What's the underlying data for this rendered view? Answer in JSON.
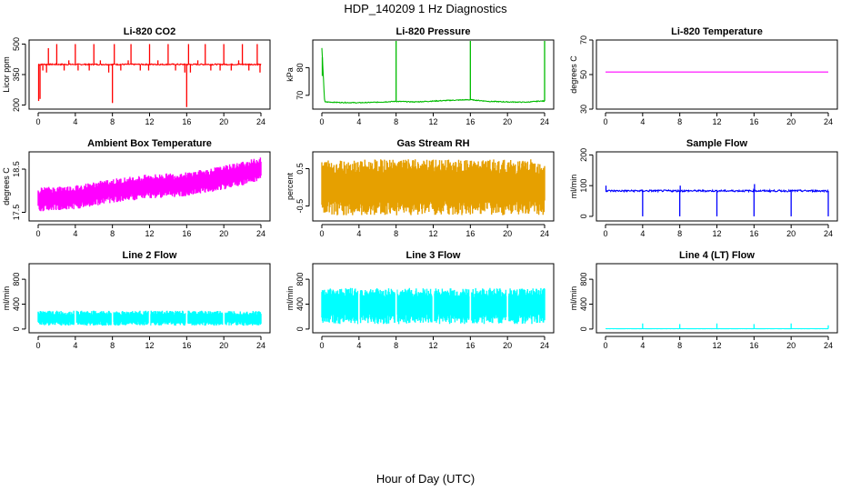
{
  "figure": {
    "title": "HDP_140209  1 Hz Diagnostics",
    "xlabel": "Hour of Day (UTC)"
  },
  "chart_data": [
    {
      "type": "line",
      "title": "Li-820 CO2",
      "ylabel": "Licor ppm",
      "color": "#ff0000",
      "xlim": [
        0,
        24
      ],
      "xticks": [
        0,
        4,
        8,
        12,
        16,
        20,
        24
      ],
      "ylim": [
        180,
        520
      ],
      "yticks": [
        200,
        350,
        500
      ],
      "baseline": 400,
      "noise": 6,
      "render": "line",
      "spikes": [
        {
          "x": 0.05,
          "y": 220
        },
        {
          "x": 0.2,
          "y": 230
        },
        {
          "x": 0.5,
          "y": 370
        },
        {
          "x": 0.9,
          "y": 360
        },
        {
          "x": 1.1,
          "y": 480
        },
        {
          "x": 2.0,
          "y": 500
        },
        {
          "x": 2.8,
          "y": 370
        },
        {
          "x": 3.3,
          "y": 420
        },
        {
          "x": 4.0,
          "y": 500
        },
        {
          "x": 4.3,
          "y": 370
        },
        {
          "x": 5.5,
          "y": 370
        },
        {
          "x": 6.0,
          "y": 500
        },
        {
          "x": 6.7,
          "y": 420
        },
        {
          "x": 7.6,
          "y": 360
        },
        {
          "x": 8.0,
          "y": 210
        },
        {
          "x": 8.2,
          "y": 500
        },
        {
          "x": 8.9,
          "y": 370
        },
        {
          "x": 9.7,
          "y": 420
        },
        {
          "x": 10.0,
          "y": 500
        },
        {
          "x": 11.0,
          "y": 370
        },
        {
          "x": 11.9,
          "y": 370
        },
        {
          "x": 12.0,
          "y": 500
        },
        {
          "x": 12.9,
          "y": 420
        },
        {
          "x": 14.0,
          "y": 500
        },
        {
          "x": 14.8,
          "y": 370
        },
        {
          "x": 15.8,
          "y": 360
        },
        {
          "x": 16.0,
          "y": 190
        },
        {
          "x": 16.2,
          "y": 500
        },
        {
          "x": 16.4,
          "y": 360
        },
        {
          "x": 17.2,
          "y": 420
        },
        {
          "x": 18.0,
          "y": 500
        },
        {
          "x": 18.6,
          "y": 370
        },
        {
          "x": 19.6,
          "y": 370
        },
        {
          "x": 20.0,
          "y": 500
        },
        {
          "x": 20.8,
          "y": 370
        },
        {
          "x": 21.6,
          "y": 420
        },
        {
          "x": 22.0,
          "y": 500
        },
        {
          "x": 22.7,
          "y": 370
        },
        {
          "x": 23.6,
          "y": 500
        },
        {
          "x": 23.9,
          "y": 360
        }
      ]
    },
    {
      "type": "line",
      "title": "Li-820 Pressure",
      "ylabel": "kPa",
      "color": "#00bb00",
      "xlim": [
        0,
        24
      ],
      "xticks": [
        0,
        4,
        8,
        12,
        16,
        20,
        24
      ],
      "ylim": [
        65,
        90
      ],
      "yticks": [
        70,
        80
      ],
      "series": {
        "x": [
          0,
          0.3,
          2,
          4,
          6,
          8,
          10,
          12,
          14,
          16,
          18,
          20,
          22,
          23.5,
          24
        ],
        "y": [
          87.0,
          67.6,
          67.4,
          67.3,
          67.5,
          67.8,
          67.6,
          67.9,
          68.2,
          68.4,
          67.8,
          67.6,
          67.5,
          67.9,
          67.9
        ]
      },
      "noise": 0.3,
      "render": "line",
      "spikes": [
        {
          "x": 0.05,
          "y": 77
        },
        {
          "x": 8.0,
          "y": 90
        },
        {
          "x": 16.0,
          "y": 90
        },
        {
          "x": 24.0,
          "y": 90
        }
      ]
    },
    {
      "type": "line",
      "title": "Li-820 Temperature",
      "ylabel": "degrees C",
      "color": "#ff00ff",
      "xlim": [
        0,
        24
      ],
      "xticks": [
        0,
        4,
        8,
        12,
        16,
        20,
        24
      ],
      "ylim": [
        30,
        70
      ],
      "yticks": [
        30,
        50,
        70
      ],
      "series": {
        "x": [
          0,
          24
        ],
        "y": [
          51.5,
          51.5
        ]
      },
      "noise": 0,
      "render": "line"
    },
    {
      "type": "line",
      "title": "Ambient Box Temperature",
      "ylabel": "degrees C",
      "color": "#ff00ff",
      "xlim": [
        0,
        24
      ],
      "xticks": [
        0,
        4,
        8,
        12,
        16,
        20,
        24
      ],
      "ylim": [
        17.3,
        18.9
      ],
      "yticks": [
        17.5,
        18.5
      ],
      "series": {
        "x": [
          0,
          4,
          8,
          12,
          16,
          20,
          24
        ],
        "y": [
          17.8,
          17.85,
          18.0,
          18.1,
          18.15,
          18.3,
          18.5
        ]
      },
      "noise": 0.28,
      "render": "band"
    },
    {
      "type": "line",
      "title": "Gas Stream RH",
      "ylabel": "percent",
      "color": "#e6a000",
      "xlim": [
        0,
        24
      ],
      "xticks": [
        0,
        4,
        8,
        12,
        16,
        20,
        24
      ],
      "ylim": [
        -0.9,
        0.95
      ],
      "yticks": [
        -0.5,
        0.5
      ],
      "series": {
        "x": [
          0,
          24
        ],
        "y": [
          0,
          0
        ]
      },
      "noise": 0.75,
      "render": "band"
    },
    {
      "type": "line",
      "title": "Sample Flow",
      "ylabel": "ml/min",
      "color": "#0000ff",
      "xlim": [
        0,
        24
      ],
      "xticks": [
        0,
        4,
        8,
        12,
        16,
        20,
        24
      ],
      "ylim": [
        -15,
        210
      ],
      "yticks": [
        0,
        100,
        200
      ],
      "series": {
        "x": [
          0,
          24
        ],
        "y": [
          83,
          83
        ]
      },
      "noise": 6,
      "render": "line",
      "spikes": [
        {
          "x": 0.05,
          "y": 100
        },
        {
          "x": 4.0,
          "y": 0
        },
        {
          "x": 8.0,
          "y": 0
        },
        {
          "x": 8.05,
          "y": 100
        },
        {
          "x": 12.0,
          "y": 0
        },
        {
          "x": 16.0,
          "y": 0
        },
        {
          "x": 16.05,
          "y": 105
        },
        {
          "x": 20.0,
          "y": 0
        },
        {
          "x": 24.0,
          "y": 0
        }
      ]
    },
    {
      "type": "line",
      "title": "Line 2 Flow",
      "ylabel": "ml/min",
      "color": "#00ffff",
      "xlim": [
        0,
        24
      ],
      "xticks": [
        0,
        4,
        8,
        12,
        16,
        20,
        24
      ],
      "ylim": [
        -60,
        1050
      ],
      "yticks": [
        0,
        400,
        800
      ],
      "series": {
        "x": [
          0,
          24
        ],
        "y": [
          175,
          175
        ]
      },
      "noise": 120,
      "render": "band",
      "gaps": [
        4,
        8,
        12,
        16,
        20,
        24
      ]
    },
    {
      "type": "line",
      "title": "Line 3 Flow",
      "ylabel": "ml/min",
      "color": "#00ffff",
      "xlim": [
        0,
        24
      ],
      "xticks": [
        0,
        4,
        8,
        12,
        16,
        20,
        24
      ],
      "ylim": [
        -60,
        1050
      ],
      "yticks": [
        0,
        400,
        800
      ],
      "series": {
        "x": [
          0,
          24
        ],
        "y": [
          370,
          370
        ]
      },
      "noise": 290,
      "render": "band",
      "gaps": [
        4,
        8,
        12,
        16,
        20,
        24
      ]
    },
    {
      "type": "line",
      "title": "Line 4 (LT) Flow",
      "ylabel": "ml/min",
      "color": "#00ffff",
      "xlim": [
        0,
        24
      ],
      "xticks": [
        0,
        4,
        8,
        12,
        16,
        20,
        24
      ],
      "ylim": [
        -60,
        1050
      ],
      "yticks": [
        0,
        400,
        800
      ],
      "series": {
        "x": [
          0,
          24
        ],
        "y": [
          5,
          5
        ]
      },
      "noise": 2,
      "render": "line",
      "spikes": [
        {
          "x": 4.0,
          "y": 90
        },
        {
          "x": 8.0,
          "y": 80
        },
        {
          "x": 12.0,
          "y": 90
        },
        {
          "x": 16.0,
          "y": 80
        },
        {
          "x": 20.0,
          "y": 90
        },
        {
          "x": 24.0,
          "y": 60
        }
      ]
    }
  ]
}
